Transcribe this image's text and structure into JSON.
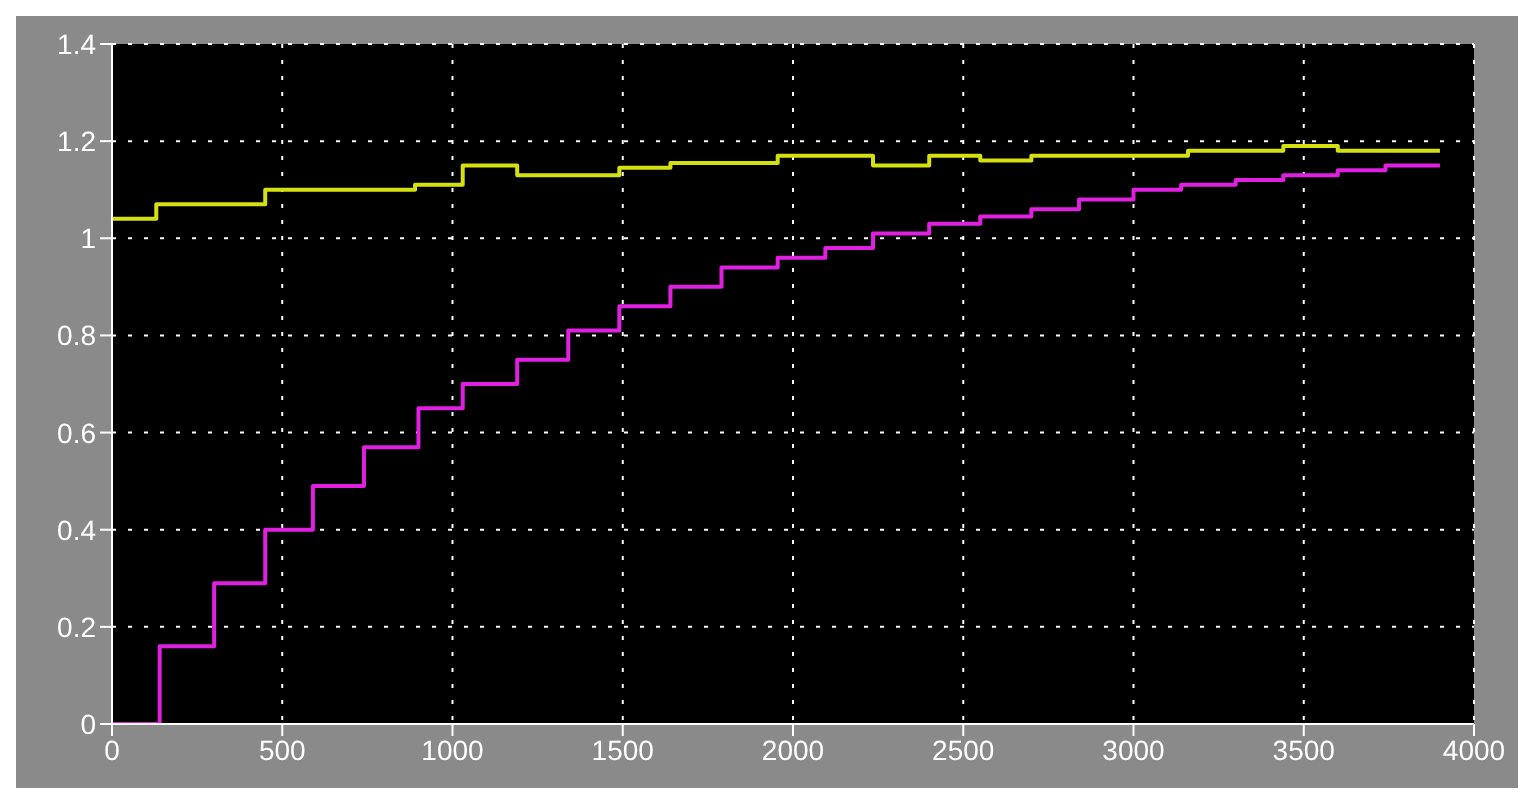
{
  "chart_data": {
    "type": "step",
    "xlim": [
      0,
      4000
    ],
    "xticks": [
      0,
      500,
      1000,
      1500,
      2000,
      2500,
      3000,
      3500,
      4000
    ],
    "ylim": [
      0,
      1.4
    ],
    "yticks": [
      0,
      0.2,
      0.4,
      0.6,
      0.8,
      1,
      1.2,
      1.4
    ],
    "grid": true,
    "marker": "none",
    "line_style": "solid",
    "series": [
      {
        "color": "#d4e010",
        "x": [
          0,
          130,
          450,
          890,
          1030,
          1190,
          1490,
          1640,
          1955,
          2235,
          2400,
          2550,
          2700,
          3160,
          3440,
          3600,
          3900
        ],
        "values": [
          1.04,
          1.07,
          1.1,
          1.11,
          1.15,
          1.13,
          1.145,
          1.155,
          1.17,
          1.15,
          1.17,
          1.16,
          1.17,
          1.18,
          1.19,
          1.18,
          1.18
        ]
      },
      {
        "color": "#e020e0",
        "x": [
          0,
          140,
          300,
          450,
          590,
          740,
          900,
          1030,
          1190,
          1340,
          1490,
          1640,
          1790,
          1955,
          2095,
          2235,
          2400,
          2550,
          2700,
          2840,
          3000,
          3140,
          3300,
          3440,
          3600,
          3740,
          3900
        ],
        "values": [
          0,
          0.16,
          0.29,
          0.4,
          0.49,
          0.57,
          0.65,
          0.7,
          0.75,
          0.81,
          0.86,
          0.9,
          0.94,
          0.96,
          0.98,
          1.01,
          1.03,
          1.045,
          1.06,
          1.08,
          1.1,
          1.11,
          1.12,
          1.13,
          1.14,
          1.15,
          1.15
        ]
      }
    ]
  }
}
